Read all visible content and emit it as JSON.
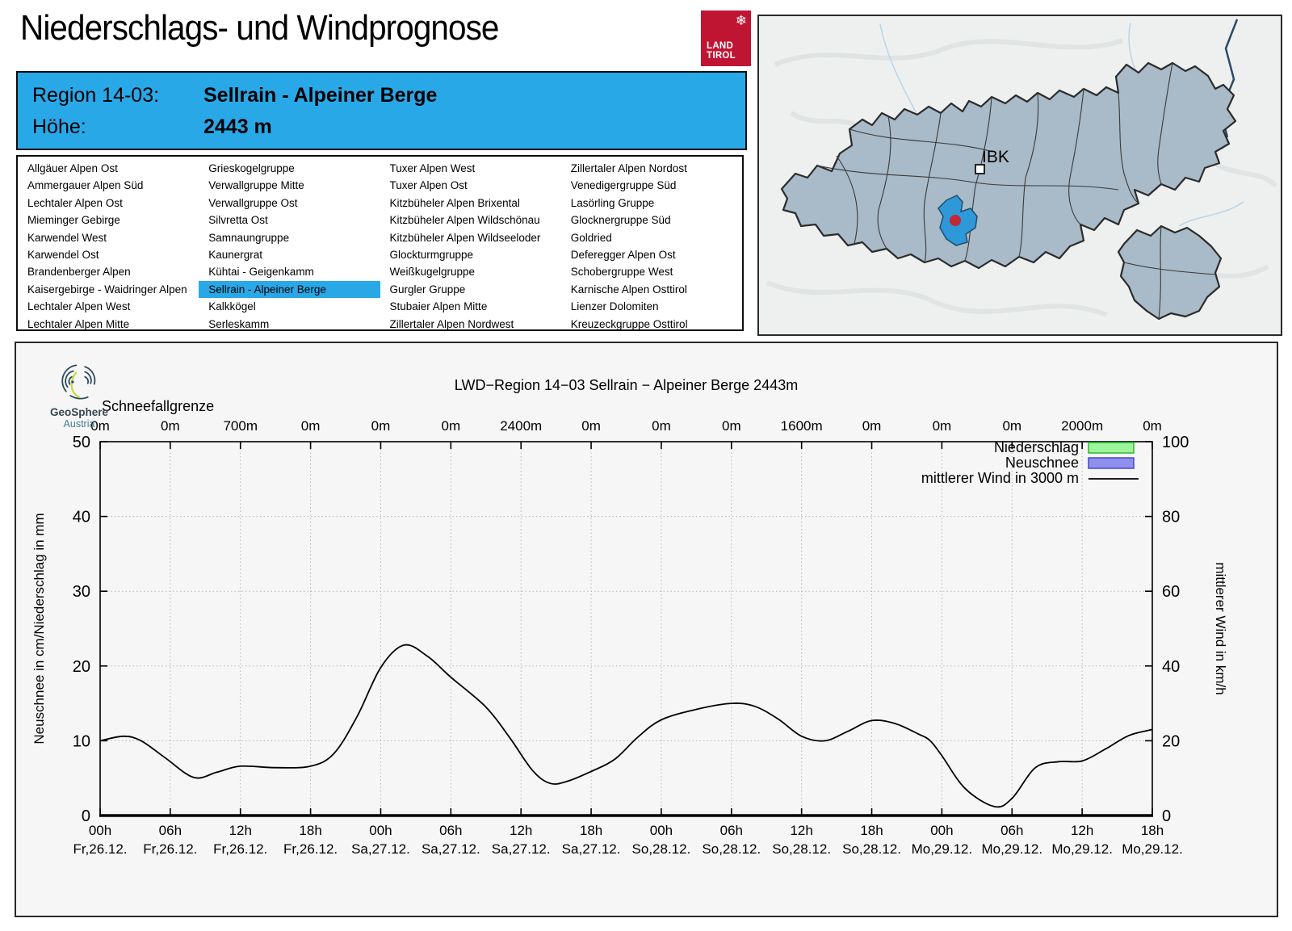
{
  "page": {
    "title": "Niederschlags- und Windprognose"
  },
  "tirol_logo": {
    "line1": "LAND",
    "line2": "TIROL",
    "snowflake_icon": "❄",
    "color": "#c01532"
  },
  "header": {
    "region_label": "Region 14-03:",
    "region_value": "Sellrain - Alpeiner Berge",
    "altitude_label": "Höhe:",
    "altitude_value": "2443 m",
    "bg_color": "#29a8e8"
  },
  "region_list": {
    "selected": "Sellrain - Alpeiner Berge",
    "highlight_color": "#29a8e8",
    "columns": [
      [
        "Allgäuer Alpen Ost",
        "Ammergauer Alpen Süd",
        "Lechtaler Alpen Ost",
        "Mieminger Gebirge",
        "Karwendel West",
        "Karwendel Ost",
        "Brandenberger Alpen",
        "Kaisergebirge - Waidringer Alpen",
        "Lechtaler Alpen West",
        "Lechtaler Alpen Mitte"
      ],
      [
        "Grieskogelgruppe",
        "Verwallgruppe Mitte",
        "Verwallgruppe Ost",
        "Silvretta Ost",
        "Samnaungruppe",
        "Kaunergrat",
        "Kühtai - Geigenkamm",
        "Sellrain - Alpeiner Berge",
        "Kalkkögel",
        "Serleskamm"
      ],
      [
        "Tuxer Alpen West",
        "Tuxer Alpen Ost",
        "Kitzbüheler Alpen Brixental",
        "Kitzbüheler Alpen Wildschönau",
        "Kitzbüheler Alpen Wildseeloder",
        "Glockturmgruppe",
        "Weißkugelgruppe",
        "Gurgler Gruppe",
        "Stubaier Alpen Mitte",
        "Zillertaler Alpen Nordwest"
      ],
      [
        "Zillertaler Alpen Nordost",
        "Venedigergruppe Süd",
        "Lasörling Gruppe",
        "Glocknergruppe Süd",
        "Goldried",
        "Deferegger Alpen Ost",
        "Schobergruppe West",
        "Karnische Alpen Osttirol",
        "Lienzer Dolomiten",
        "Kreuzeckgruppe Osttirol"
      ]
    ]
  },
  "map": {
    "city_label": "IBK",
    "region_fill": "#a9bac8",
    "selected_fill": "#2f98d8",
    "marker_color": "#c22833"
  },
  "geosphere_logo": {
    "name": "GeoSphere",
    "sub": "Austria"
  },
  "chart_data": {
    "type": "line",
    "title": "LWD−Region 14−03 Sellrain − Alpeiner Berge 2443m",
    "top_axis_label": "Schneefallgrenze",
    "snowline_values": [
      "0m",
      "0m",
      "700m",
      "0m",
      "0m",
      "0m",
      "2400m",
      "0m",
      "0m",
      "0m",
      "1600m",
      "0m",
      "0m",
      "0m",
      "2000m",
      "0m"
    ],
    "x_tick_times": [
      "00h",
      "06h",
      "12h",
      "18h",
      "00h",
      "06h",
      "12h",
      "18h",
      "00h",
      "06h",
      "12h",
      "18h",
      "00h",
      "06h",
      "12h",
      "18h"
    ],
    "x_tick_dates": [
      "Fr,26.12.",
      "Fr,26.12.",
      "Fr,26.12.",
      "Fr,26.12.",
      "Sa,27.12.",
      "Sa,27.12.",
      "Sa,27.12.",
      "Sa,27.12.",
      "So,28.12.",
      "So,28.12.",
      "So,28.12.",
      "So,28.12.",
      "Mo,29.12.",
      "Mo,29.12.",
      "Mo,29.12.",
      "Mo,29.12."
    ],
    "ylabel_left": "Neuschnee in cm/Niederschlag in mm",
    "ylabel_right": "mittlerer Wind in km/h",
    "ylim_left": [
      0,
      50
    ],
    "ylim_right": [
      0,
      100
    ],
    "yticks_left": [
      0,
      10,
      20,
      30,
      40,
      50
    ],
    "yticks_right": [
      0,
      20,
      40,
      60,
      80,
      100
    ],
    "x_hours_total": 90,
    "grid": "dotted",
    "legend_position": "top-right",
    "legend": [
      {
        "label": "Niederschlag",
        "type": "box",
        "fill": "#9cf49c",
        "border": "#2eb82e"
      },
      {
        "label": "Neuschnee",
        "type": "box",
        "fill": "#8f8fee",
        "border": "#4646cc"
      },
      {
        "label": "mittlerer Wind in 3000 m",
        "type": "line",
        "color": "#000000"
      }
    ],
    "series": [
      {
        "name": "mittlerer Wind in 3000 m",
        "axis": "right",
        "unit": "km/h",
        "color": "#000000",
        "points": [
          [
            0,
            20
          ],
          [
            2,
            21.2
          ],
          [
            3.5,
            20
          ],
          [
            5.5,
            15.6
          ],
          [
            8,
            10.2
          ],
          [
            10,
            11.6
          ],
          [
            12,
            13.2
          ],
          [
            15,
            12.8
          ],
          [
            18,
            13.2
          ],
          [
            20,
            16.6
          ],
          [
            22,
            26.6
          ],
          [
            24,
            39.6
          ],
          [
            26,
            45.6
          ],
          [
            28,
            42.6
          ],
          [
            30,
            37
          ],
          [
            33,
            29
          ],
          [
            35,
            21
          ],
          [
            37,
            12
          ],
          [
            38.5,
            8.6
          ],
          [
            40,
            9.2
          ],
          [
            42,
            11.8
          ],
          [
            44,
            15
          ],
          [
            46,
            21
          ],
          [
            48,
            25.6
          ],
          [
            51,
            28.4
          ],
          [
            54,
            30
          ],
          [
            56,
            29.2
          ],
          [
            58,
            25.8
          ],
          [
            60,
            21.2
          ],
          [
            62,
            20
          ],
          [
            64,
            22.6
          ],
          [
            66,
            25.4
          ],
          [
            68,
            24.6
          ],
          [
            70,
            21.8
          ],
          [
            71,
            20
          ],
          [
            72,
            16
          ],
          [
            74,
            7.2
          ],
          [
            76.5,
            2.4
          ],
          [
            78,
            4.6
          ],
          [
            80,
            12.8
          ],
          [
            82,
            14.4
          ],
          [
            84,
            14.6
          ],
          [
            86,
            17.8
          ],
          [
            88,
            21.4
          ],
          [
            90,
            23
          ]
        ]
      }
    ],
    "niederschlag_visible_values": [],
    "neuschnee_visible_values": []
  }
}
